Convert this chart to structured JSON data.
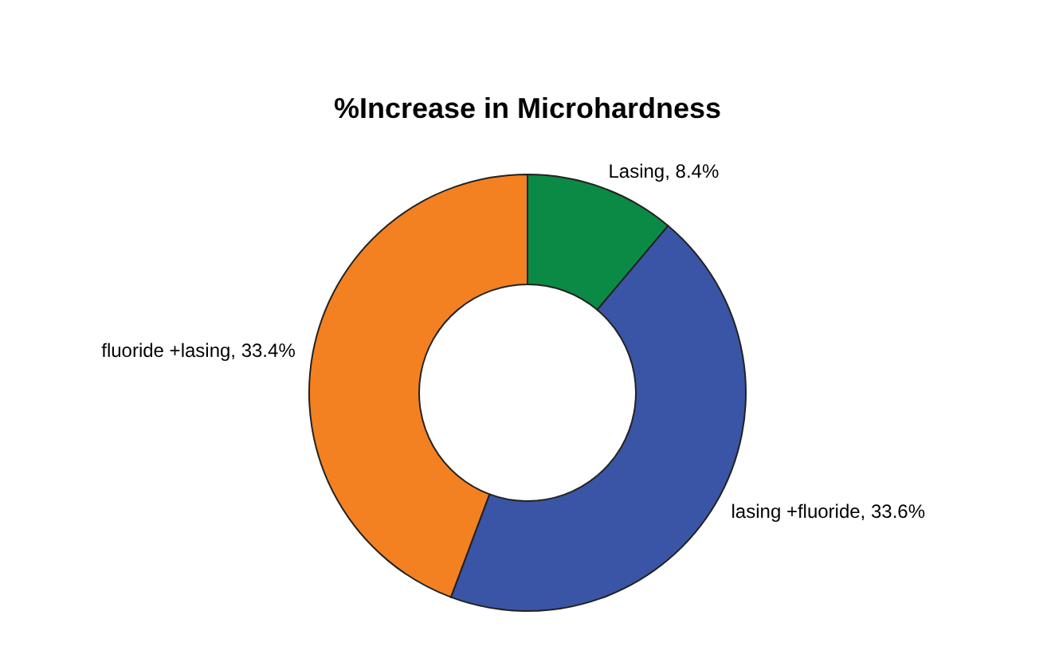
{
  "chart_data": {
    "type": "donut",
    "title": "%Increase in Microhardness",
    "categories": [
      "Lasing",
      "lasing +fluoride",
      "fluoride +lasing"
    ],
    "values": [
      8.4,
      33.6,
      33.4
    ],
    "value_labels": [
      "8.4%",
      "33.6%",
      "33.4%"
    ],
    "colors": [
      "#0b8a45",
      "#3a55a5",
      "#f38121"
    ],
    "legend": false
  }
}
